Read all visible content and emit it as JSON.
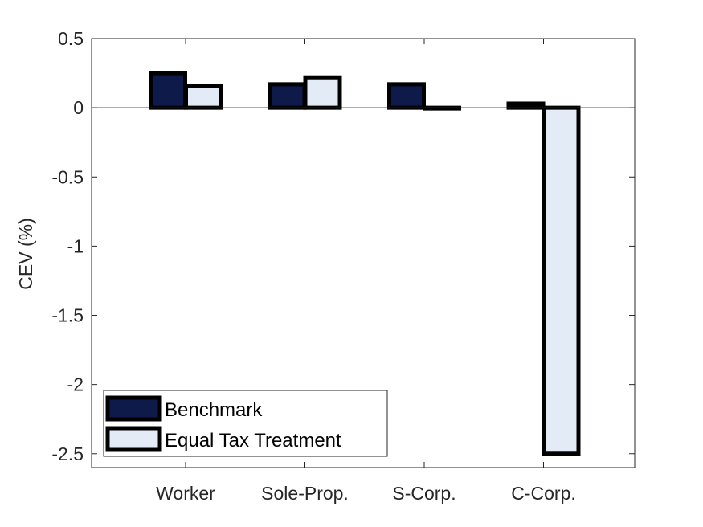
{
  "chart_data": {
    "type": "bar",
    "categories": [
      "Worker",
      "Sole-Prop.",
      "S-Corp.",
      "C-Corp."
    ],
    "series": [
      {
        "name": "Benchmark",
        "values": [
          0.25,
          0.17,
          0.17,
          0.03
        ],
        "color": "#0d1a4a"
      },
      {
        "name": "Equal Tax Treatment",
        "values": [
          0.16,
          0.22,
          0.0,
          -2.5
        ],
        "color": "#e3ebf7"
      }
    ],
    "title": "",
    "xlabel": "",
    "ylabel": "CEV (%)",
    "ylim": [
      -2.6,
      0.5
    ],
    "yticks": [
      0.5,
      0,
      -0.5,
      -1,
      -1.5,
      -2,
      -2.5
    ],
    "ytick_labels": [
      "0.5",
      "0",
      "-0.5",
      "-1",
      "-1.5",
      "-2",
      "-2.5"
    ],
    "grid": false,
    "legend_position": "bottom-left",
    "bar_edge_color": "#000000",
    "axis_color": "#262626"
  }
}
